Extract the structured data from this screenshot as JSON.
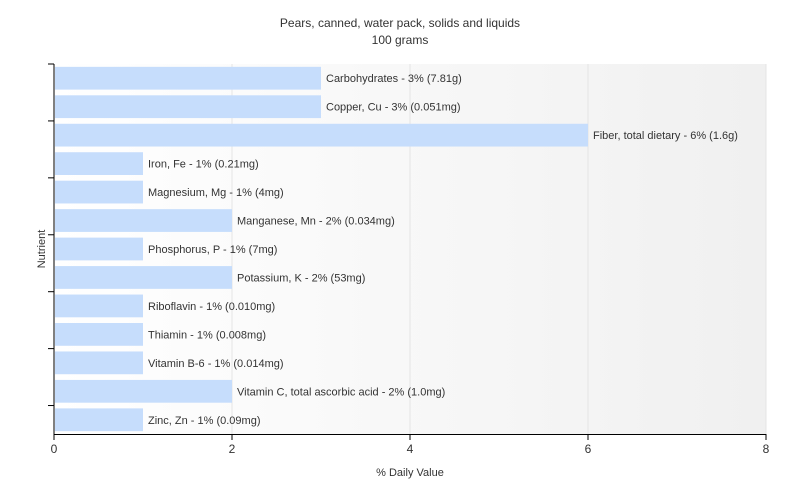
{
  "chart_data": {
    "type": "bar",
    "orientation": "horizontal",
    "title": "Pears, canned, water pack, solids and liquids",
    "subtitle": "100 grams",
    "xlabel": "% Daily Value",
    "ylabel": "Nutrient",
    "xlim": [
      0,
      8
    ],
    "xticks": [
      0,
      2,
      4,
      6,
      8
    ],
    "grid": true,
    "bar_color": "#c6ddfc",
    "categories": [
      "Carbohydrates",
      "Copper, Cu",
      "Fiber, total dietary",
      "Iron, Fe",
      "Magnesium, Mg",
      "Manganese, Mn",
      "Phosphorus, P",
      "Potassium, K",
      "Riboflavin",
      "Thiamin",
      "Vitamin B-6",
      "Vitamin C, total ascorbic acid",
      "Zinc, Zn"
    ],
    "values": [
      3,
      3,
      6,
      1,
      1,
      2,
      1,
      2,
      1,
      1,
      1,
      2,
      1
    ],
    "data_labels": [
      "Carbohydrates - 3% (7.81g)",
      "Copper, Cu - 3% (0.051mg)",
      "Fiber, total dietary - 6% (1.6g)",
      "Iron, Fe - 1% (0.21mg)",
      "Magnesium, Mg - 1% (4mg)",
      "Manganese, Mn - 2% (0.034mg)",
      "Phosphorus, P - 1% (7mg)",
      "Potassium, K - 2% (53mg)",
      "Riboflavin - 1% (0.010mg)",
      "Thiamin - 1% (0.008mg)",
      "Vitamin B-6 - 1% (0.014mg)",
      "Vitamin C, total ascorbic acid - 2% (1.0mg)",
      "Zinc, Zn - 1% (0.09mg)"
    ]
  }
}
